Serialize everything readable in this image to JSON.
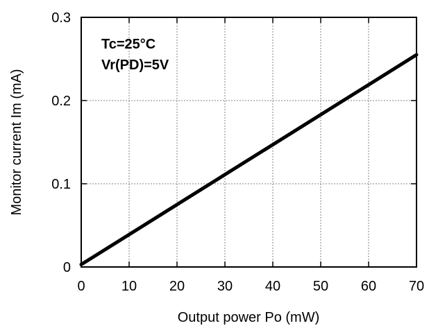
{
  "chart_data": {
    "type": "line",
    "title": "",
    "xlabel": "Output power  Po (mW)",
    "ylabel": "Monitor current Im (mA)",
    "xlim": [
      0,
      70
    ],
    "ylim": [
      0,
      0.3
    ],
    "x_ticks": [
      0,
      10,
      20,
      30,
      40,
      50,
      60,
      70
    ],
    "y_ticks": [
      0,
      0.1,
      0.2,
      0.3
    ],
    "x_tick_labels": [
      "0",
      "10",
      "20",
      "30",
      "40",
      "50",
      "60",
      "70"
    ],
    "y_tick_labels": [
      "0",
      "0.1",
      "0.2",
      "0.3"
    ],
    "grid": true,
    "legend": false,
    "annotations": [
      "Tc=25°C",
      "Vr(PD)=5V"
    ],
    "series": [
      {
        "x": [
          0,
          10,
          20,
          30,
          40,
          50,
          60,
          70
        ],
        "y": [
          0.003,
          0.039,
          0.075,
          0.111,
          0.147,
          0.183,
          0.219,
          0.255
        ]
      }
    ],
    "colors": {
      "line": "#000000",
      "grid": "#808080",
      "axis": "#000000"
    }
  }
}
